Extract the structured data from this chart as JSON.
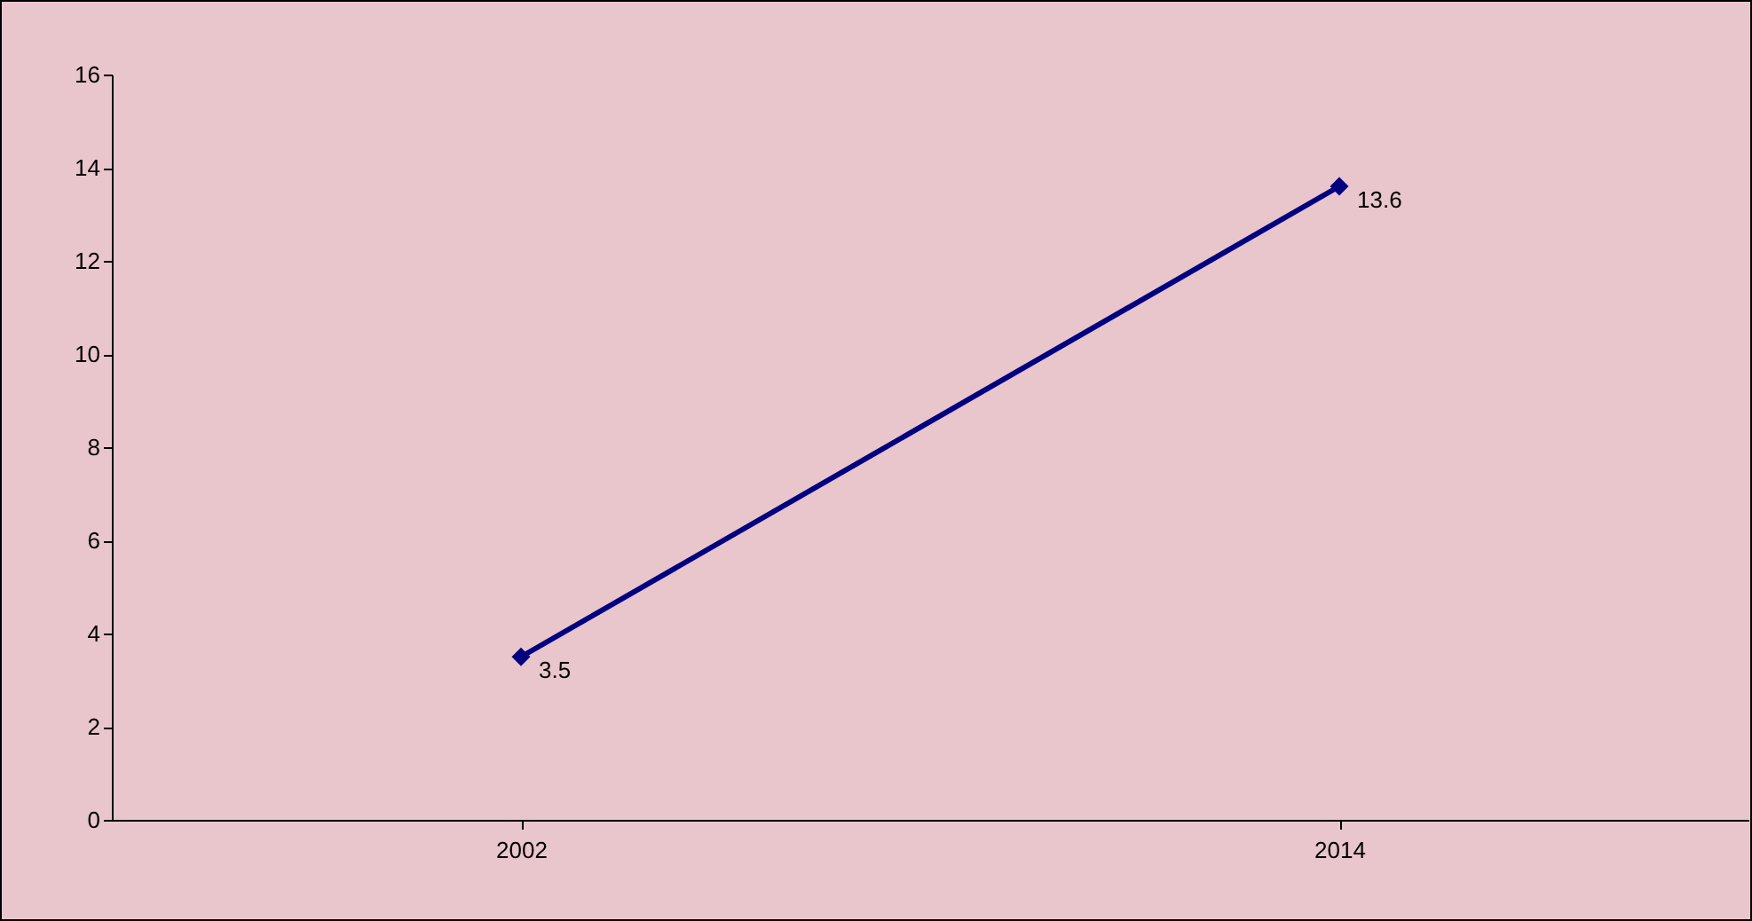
{
  "chart_data": {
    "type": "line",
    "categories": [
      "2002",
      "2014"
    ],
    "series": [
      {
        "color": "#000080",
        "values": [
          3.5,
          13.6
        ]
      }
    ],
    "ylim": [
      0,
      16
    ],
    "yticks": [
      0,
      2,
      4,
      6,
      8,
      10,
      12,
      14,
      16
    ],
    "grid": false,
    "legend": false,
    "marker": "diamond",
    "line_style": "solid",
    "data_labels": true
  }
}
